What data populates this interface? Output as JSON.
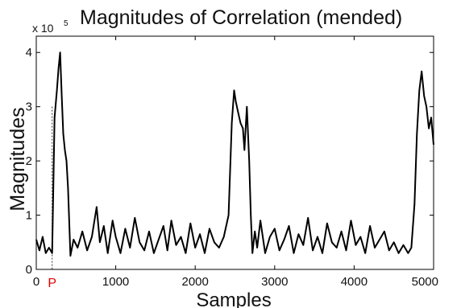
{
  "chart_data": {
    "type": "line",
    "title": "Magnitudes of Correlation (mended)",
    "xlabel": "Samples",
    "ylabel": "Magnitudes",
    "y_multiplier": "x 10^5",
    "y_multiplier_base": "x 10",
    "y_multiplier_exponent": "5",
    "xlim": [
      0,
      5000
    ],
    "ylim": [
      0,
      4.3
    ],
    "x_ticks": [
      "0",
      "1000",
      "2000",
      "3000",
      "4000",
      "5000"
    ],
    "x_tick_values": [
      0,
      1000,
      2000,
      3000,
      4000,
      5000
    ],
    "y_ticks": [
      "0",
      "1",
      "2",
      "3",
      "4"
    ],
    "y_tick_values": [
      0,
      1,
      2,
      3,
      4
    ],
    "marker": {
      "label": "P",
      "x": 200,
      "color": "#e00000",
      "style": "dotted vertical line"
    },
    "grid": false,
    "line_color": "#000000",
    "series": [
      {
        "x": [
          0,
          40,
          80,
          120,
          160,
          200,
          230,
          260,
          280,
          300,
          320,
          340,
          360,
          380,
          400,
          430,
          470,
          520,
          580,
          640,
          700,
          760,
          800,
          850,
          900,
          960,
          1000,
          1060,
          1120,
          1180,
          1240,
          1300,
          1360,
          1420,
          1480,
          1540,
          1600,
          1650,
          1700,
          1760,
          1820,
          1880,
          1940,
          2000,
          2060,
          2120,
          2180,
          2240,
          2300,
          2360,
          2420,
          2460,
          2490,
          2510,
          2540,
          2570,
          2600,
          2620,
          2650,
          2680,
          2700,
          2720,
          2750,
          2780,
          2820,
          2880,
          2940,
          3000,
          3060,
          3120,
          3180,
          3240,
          3300,
          3360,
          3420,
          3480,
          3540,
          3600,
          3660,
          3720,
          3780,
          3840,
          3900,
          3960,
          4020,
          4080,
          4140,
          4200,
          4260,
          4320,
          4380,
          4440,
          4500,
          4560,
          4620,
          4680,
          4720,
          4760,
          4790,
          4820,
          4850,
          4880,
          4910,
          4940,
          4970,
          5000
        ],
        "y": [
          0.55,
          0.35,
          0.6,
          0.3,
          0.4,
          0.3,
          2.8,
          3.3,
          3.7,
          4.0,
          3.2,
          2.5,
          2.2,
          2.0,
          1.5,
          0.25,
          0.55,
          0.4,
          0.7,
          0.35,
          0.6,
          1.15,
          0.5,
          0.8,
          0.3,
          0.9,
          0.6,
          0.3,
          0.75,
          0.4,
          0.95,
          0.5,
          0.35,
          0.7,
          0.3,
          0.55,
          0.8,
          0.35,
          0.9,
          0.45,
          0.6,
          0.3,
          0.85,
          0.4,
          0.65,
          0.3,
          0.75,
          0.5,
          0.4,
          0.6,
          1.0,
          2.7,
          3.3,
          3.1,
          2.9,
          2.7,
          2.6,
          2.2,
          3.0,
          2.0,
          1.0,
          0.3,
          0.7,
          0.4,
          0.9,
          0.3,
          0.6,
          0.75,
          0.35,
          0.55,
          0.8,
          0.3,
          0.65,
          0.45,
          0.95,
          0.35,
          0.6,
          0.3,
          0.85,
          0.5,
          0.4,
          0.7,
          0.35,
          0.9,
          0.45,
          0.6,
          0.3,
          0.8,
          0.4,
          0.55,
          0.7,
          0.35,
          0.5,
          0.3,
          0.45,
          0.3,
          0.4,
          1.2,
          2.5,
          3.3,
          3.65,
          3.2,
          3.0,
          2.6,
          2.8,
          2.3
        ]
      }
    ]
  }
}
